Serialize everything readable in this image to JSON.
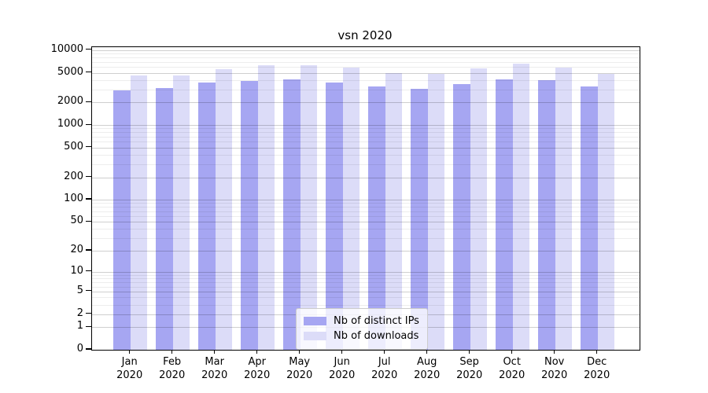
{
  "figure": {
    "title": "vsn 2020"
  },
  "chart_data": {
    "type": "bar",
    "title": "vsn 2020",
    "categories": [
      "Jan",
      "Feb",
      "Mar",
      "Apr",
      "May",
      "Jun",
      "Jul",
      "Aug",
      "Sep",
      "Oct",
      "Nov",
      "Dec"
    ],
    "category_year": "2020",
    "series": [
      {
        "name": "Nb of distinct IPs",
        "color": "#a6a6f2",
        "values": [
          2900,
          3100,
          3700,
          3900,
          4100,
          3700,
          3250,
          3050,
          3550,
          4100,
          4000,
          3300
        ]
      },
      {
        "name": "Nb of downloads",
        "color": "#dcdcf8",
        "values": [
          4600,
          4550,
          5550,
          6250,
          6350,
          5800,
          5000,
          4800,
          5700,
          6600,
          5900,
          4800
        ]
      }
    ],
    "xlabel": "",
    "ylabel": "",
    "yscale": "log-like (log10 of value+1), linear-to-zero at bottom",
    "y_ticks": [
      0,
      1,
      2,
      5,
      10,
      20,
      50,
      100,
      200,
      500,
      1000,
      2000,
      5000,
      10000
    ],
    "y_minor_ticks_pattern": [
      3,
      4,
      6,
      7,
      8,
      9
    ],
    "ylim": [
      0,
      10900
    ],
    "grid": {
      "horizontal_major": true,
      "horizontal_minor": true,
      "vertical": false,
      "drawn_over_bars": true
    },
    "legend": {
      "position": "bottom-center",
      "entries": [
        "Nb of distinct IPs",
        "Nb of downloads"
      ]
    },
    "colors": {
      "axis": "#000000",
      "text": "#000000",
      "grid_major": "#cccccc",
      "grid_minor": "#ededed",
      "background": "#ffffff"
    }
  }
}
